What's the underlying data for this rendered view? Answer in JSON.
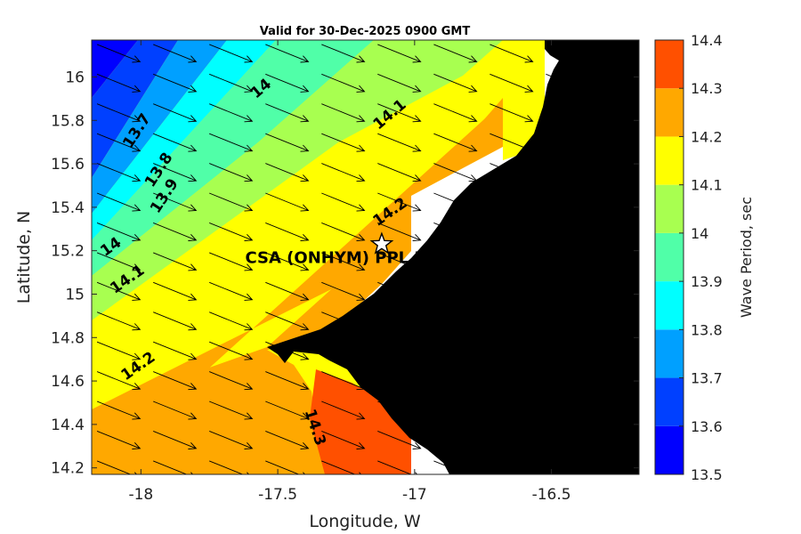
{
  "title": "Valid for 30-Dec-2025 0900 GMT",
  "xlabel": "Longitude, W",
  "ylabel": "Latitude, N",
  "colorbar_label": "Wave Period, sec",
  "site": {
    "name": "CSA (ONHYM) PPL EP",
    "lon": -17.12,
    "lat": 15.23,
    "marker": "star-icon"
  },
  "colors": {
    "land": "#000000",
    "nodata": "#ffffff",
    "levels": [
      "#0000ff",
      "#0040ff",
      "#0080ff",
      "#00bfff",
      "#00ffff",
      "#40ffbf",
      "#80ff80",
      "#bfff40",
      "#ffff00",
      "#ffbf00",
      "#ff8000",
      "#ff4000"
    ]
  },
  "chart_data": {
    "type": "heatmap",
    "xlim": [
      -18.18,
      -16.18
    ],
    "ylim": [
      14.17,
      16.17
    ],
    "xticks": [
      -18,
      -17.5,
      -17,
      -16.5
    ],
    "xtick_labels": [
      "-18",
      "-17.5",
      "-17",
      "-16.5"
    ],
    "yticks": [
      14.2,
      14.4,
      14.6,
      14.8,
      15,
      15.2,
      15.4,
      15.6,
      15.8,
      16
    ],
    "ytick_labels": [
      "14.2",
      "14.4",
      "14.6",
      "14.8",
      "15",
      "15.2",
      "15.4",
      "15.6",
      "15.8",
      "16"
    ],
    "colorbar": {
      "min": 13.5,
      "max": 14.4,
      "step": 0.1,
      "bands": [
        {
          "lo": 13.5,
          "hi": 13.6,
          "color": "#0000ff"
        },
        {
          "lo": 13.6,
          "hi": 13.7,
          "color": "#0040ff"
        },
        {
          "lo": 13.7,
          "hi": 13.8,
          "color": "#00a0ff"
        },
        {
          "lo": 13.8,
          "hi": 13.9,
          "color": "#00ffff"
        },
        {
          "lo": 13.9,
          "hi": 14.0,
          "color": "#50ffa8"
        },
        {
          "lo": 14.0,
          "hi": 14.1,
          "color": "#a8ff50"
        },
        {
          "lo": 14.1,
          "hi": 14.2,
          "color": "#ffff00"
        },
        {
          "lo": 14.2,
          "hi": 14.3,
          "color": "#ffa800"
        },
        {
          "lo": 14.3,
          "hi": 14.4,
          "color": "#ff5000"
        }
      ],
      "tick_labels": [
        "13.5",
        "13.6",
        "13.7",
        "13.8",
        "13.9",
        "14",
        "14.1",
        "14.2",
        "14.3",
        "14.4"
      ]
    },
    "contour_labels": [
      {
        "text": "13.7",
        "lon": -18.0,
        "lat": 15.74,
        "angle": -57
      },
      {
        "text": "13.8",
        "lon": -17.92,
        "lat": 15.56,
        "angle": -57
      },
      {
        "text": "13.9",
        "lon": -17.9,
        "lat": 15.44,
        "angle": -57
      },
      {
        "text": "14",
        "lon": -17.55,
        "lat": 15.93,
        "angle": -40
      },
      {
        "text": "14.1",
        "lon": -17.08,
        "lat": 15.81,
        "angle": -40
      },
      {
        "text": "14",
        "lon": -18.1,
        "lat": 15.2,
        "angle": -35
      },
      {
        "text": "14.1",
        "lon": -18.04,
        "lat": 15.05,
        "angle": -35
      },
      {
        "text": "14.2",
        "lon": -17.08,
        "lat": 15.36,
        "angle": -35
      },
      {
        "text": "14.2",
        "lon": -18.0,
        "lat": 14.65,
        "angle": -35
      },
      {
        "text": "14.3",
        "lon": -17.38,
        "lat": 14.38,
        "angle": 72
      }
    ],
    "arrows": {
      "direction_deg_from_east": -22,
      "spacing_lon": 0.205,
      "spacing_lat": 0.137
    }
  }
}
